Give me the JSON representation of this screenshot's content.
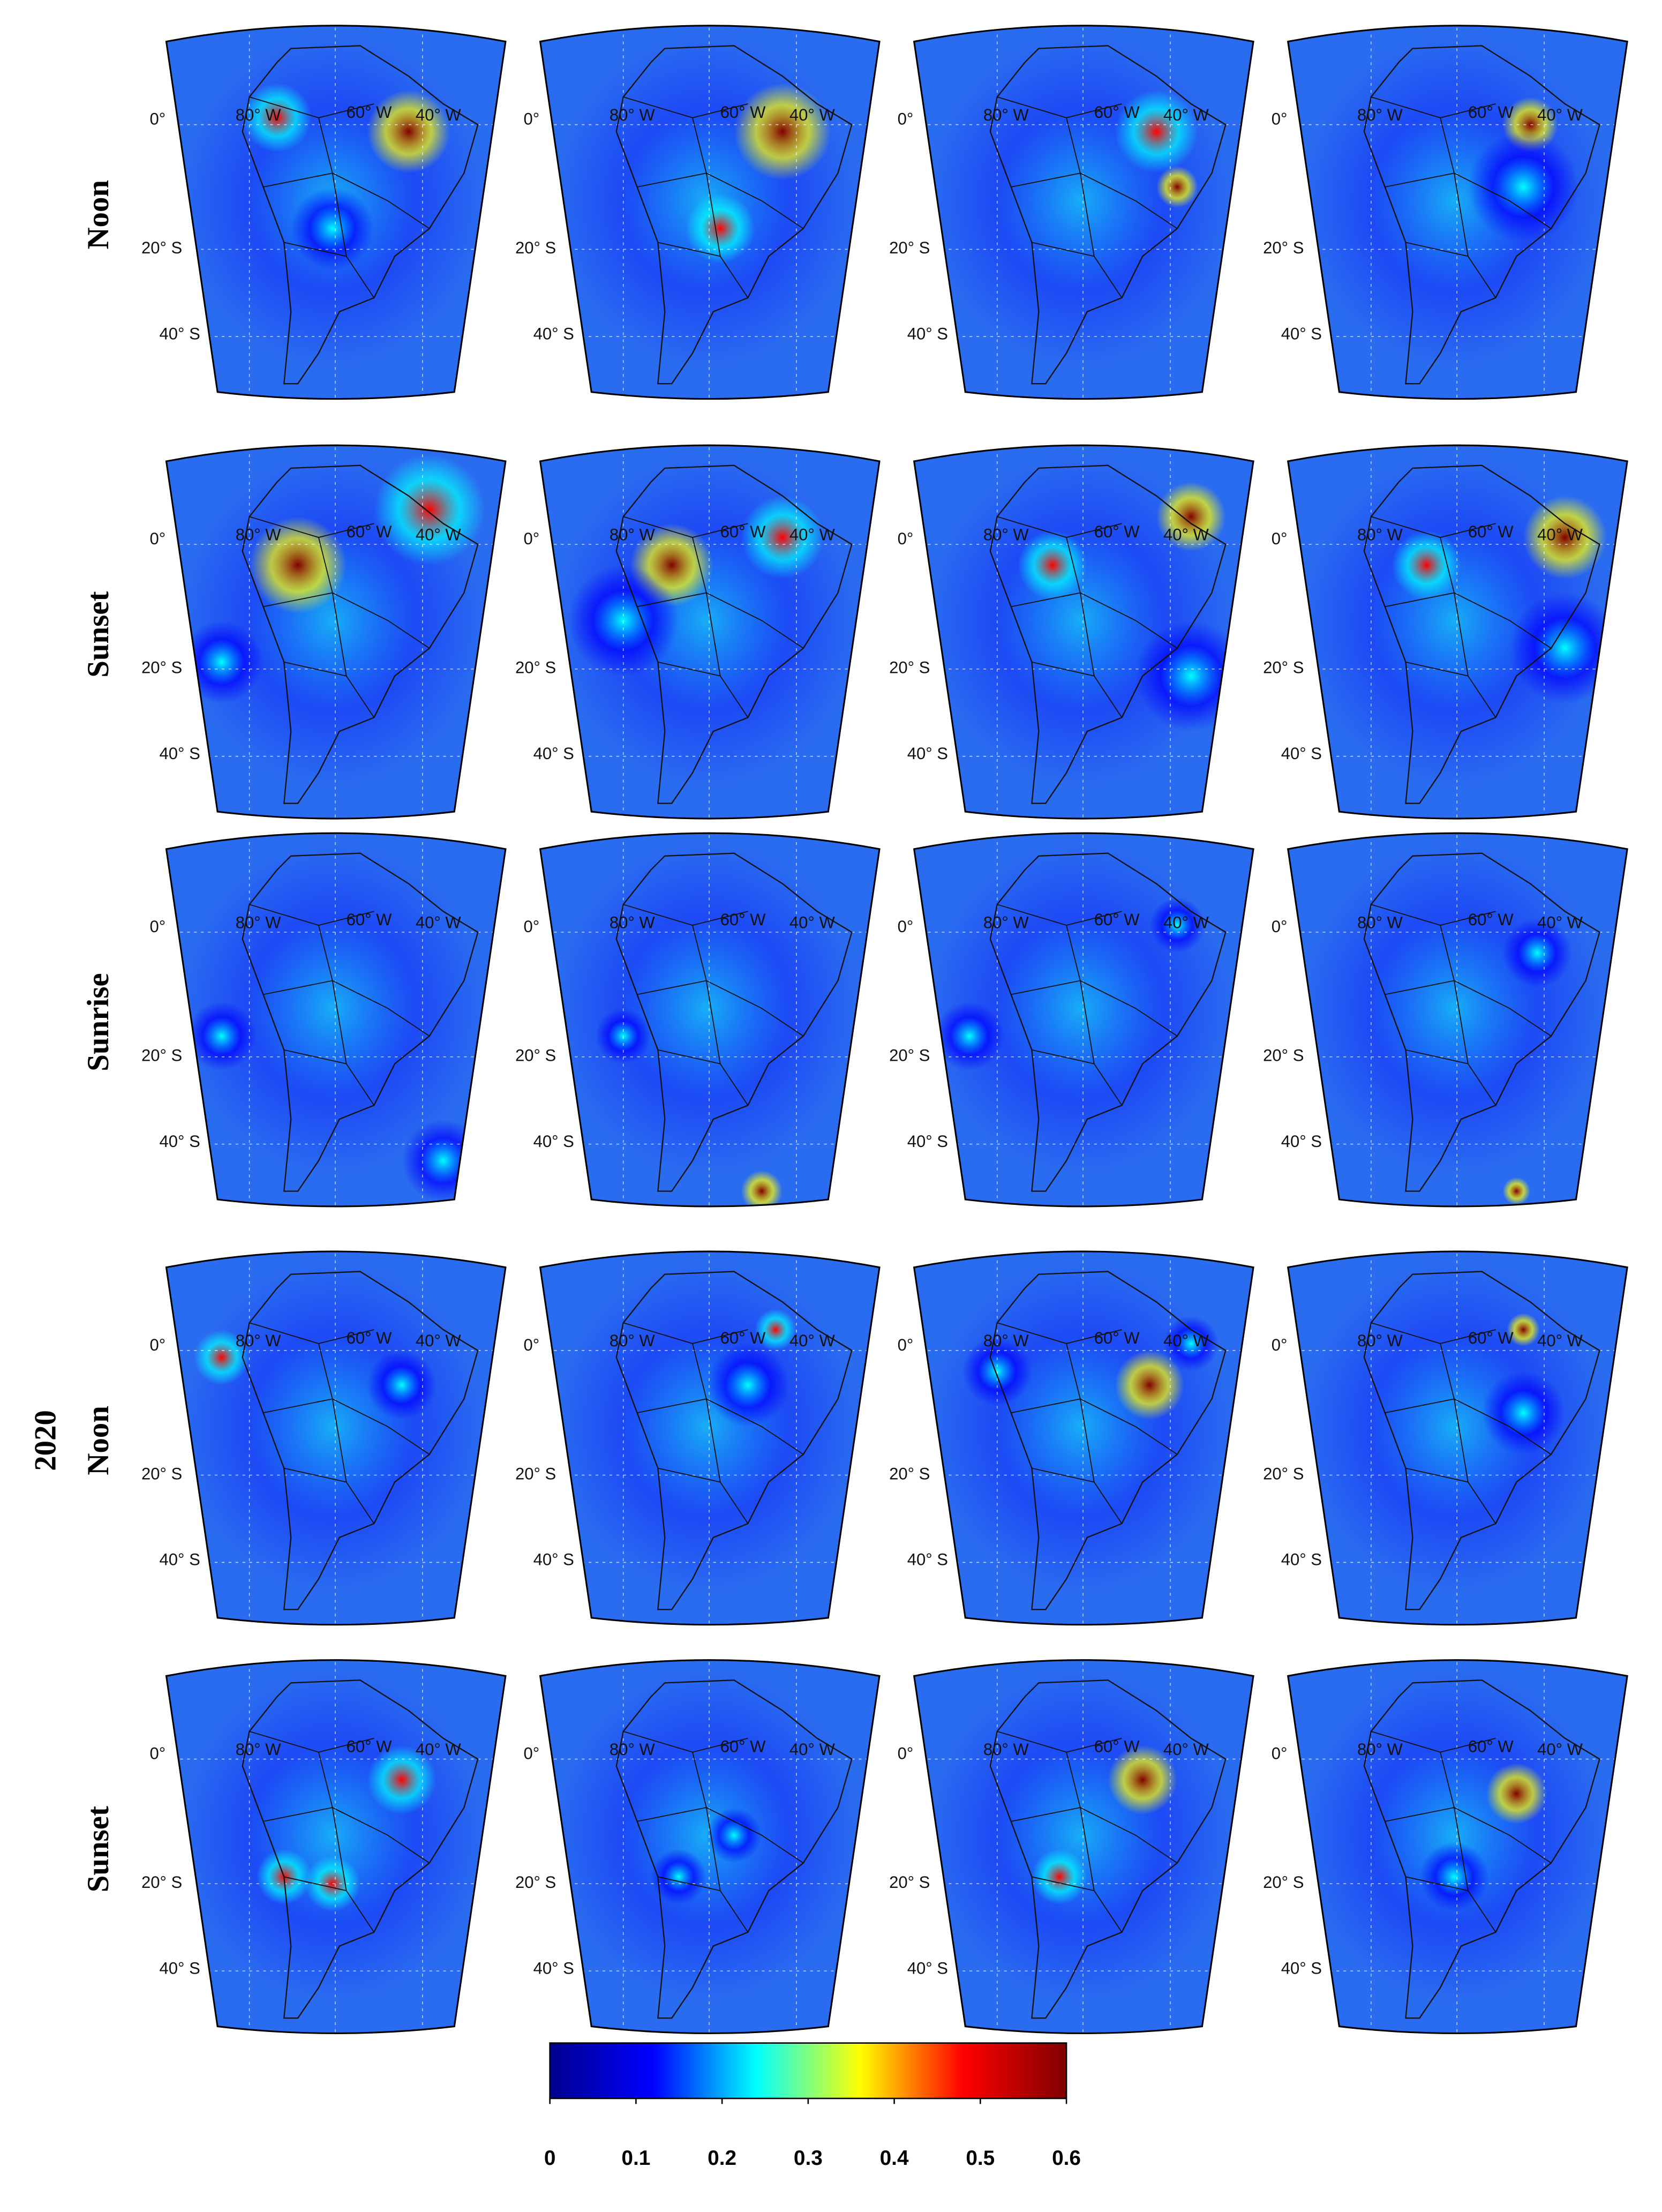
{
  "row_labels": [
    "Noon",
    "Sunset",
    "Sunrise",
    "Noon",
    "Sunset"
  ],
  "year_label": "2020",
  "map_labels": {
    "lon": [
      "80° W",
      "60° W",
      "40° W"
    ],
    "lat": [
      "0°",
      "20° S",
      "40° S"
    ]
  },
  "colorbar": {
    "range": [
      0,
      0.6
    ],
    "ticks": [
      0,
      0.1,
      0.2,
      0.3,
      0.4,
      0.5,
      0.6
    ],
    "colormap": [
      "#00008f",
      "#0000ff",
      "#00ffff",
      "#ffff00",
      "#ff0000",
      "#800000"
    ]
  }
}
